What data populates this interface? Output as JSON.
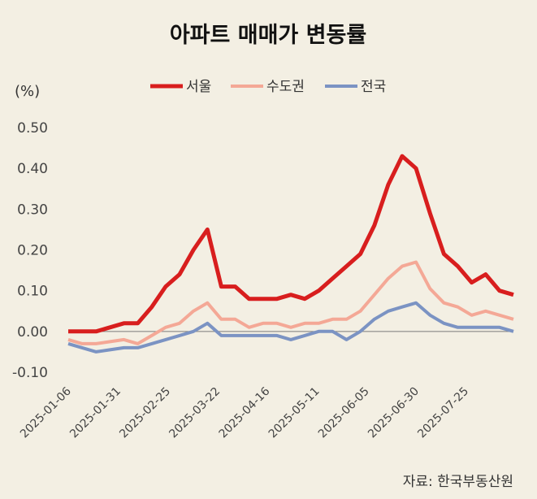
{
  "chart_data": {
    "type": "line",
    "title": "아파트 매매가 변동률",
    "unit_label": "(%)",
    "source": "자료: 한국부동산원",
    "ylim": [
      -0.1,
      0.5
    ],
    "y_ticks": [
      "0.50",
      "0.40",
      "0.30",
      "0.20",
      "0.10",
      "0.00",
      "-0.10"
    ],
    "y_tick_values": [
      0.5,
      0.4,
      0.3,
      0.2,
      0.1,
      0.0,
      -0.1
    ],
    "x_tick_labels": [
      "2025-01-06",
      "2025-01-31",
      "2025-02-25",
      "2025-03-22",
      "2025-04-16",
      "2025-05-11",
      "2025-06-05",
      "2025-06-30",
      "2025-07-25"
    ],
    "x_tick_index": [
      0,
      3.5714,
      7.1429,
      10.7143,
      14.2857,
      17.8571,
      21.4286,
      25.0,
      28.5714
    ],
    "x_count": 33,
    "grid": false,
    "legend_position": "top-center",
    "series": [
      {
        "name": "서울",
        "color": "#d81e1e",
        "width": 5,
        "values": [
          0.0,
          0.0,
          0.0,
          0.01,
          0.02,
          0.02,
          0.06,
          0.11,
          0.14,
          0.2,
          0.25,
          0.11,
          0.11,
          0.08,
          0.08,
          0.08,
          0.09,
          0.08,
          0.1,
          0.13,
          0.16,
          0.19,
          0.26,
          0.36,
          0.43,
          0.4,
          0.29,
          0.19,
          0.16,
          0.12,
          0.14,
          0.1,
          0.09
        ]
      },
      {
        "name": "수도권",
        "color": "#f4a896",
        "width": 4,
        "values": [
          -0.02,
          -0.03,
          -0.03,
          -0.025,
          -0.02,
          -0.03,
          -0.01,
          0.01,
          0.02,
          0.05,
          0.07,
          0.03,
          0.03,
          0.01,
          0.02,
          0.02,
          0.01,
          0.02,
          0.02,
          0.03,
          0.03,
          0.05,
          0.09,
          0.13,
          0.16,
          0.17,
          0.105,
          0.07,
          0.06,
          0.04,
          0.05,
          0.04,
          0.03
        ]
      },
      {
        "name": "전국",
        "color": "#7b93c3",
        "width": 4,
        "values": [
          -0.03,
          -0.04,
          -0.05,
          -0.045,
          -0.04,
          -0.04,
          -0.03,
          -0.02,
          -0.01,
          0.0,
          0.02,
          -0.01,
          -0.01,
          -0.01,
          -0.01,
          -0.01,
          -0.02,
          -0.01,
          0.0,
          0.0,
          -0.02,
          0.0,
          0.03,
          0.05,
          0.06,
          0.07,
          0.04,
          0.02,
          0.01,
          0.01,
          0.01,
          0.01,
          0.0
        ]
      }
    ]
  }
}
